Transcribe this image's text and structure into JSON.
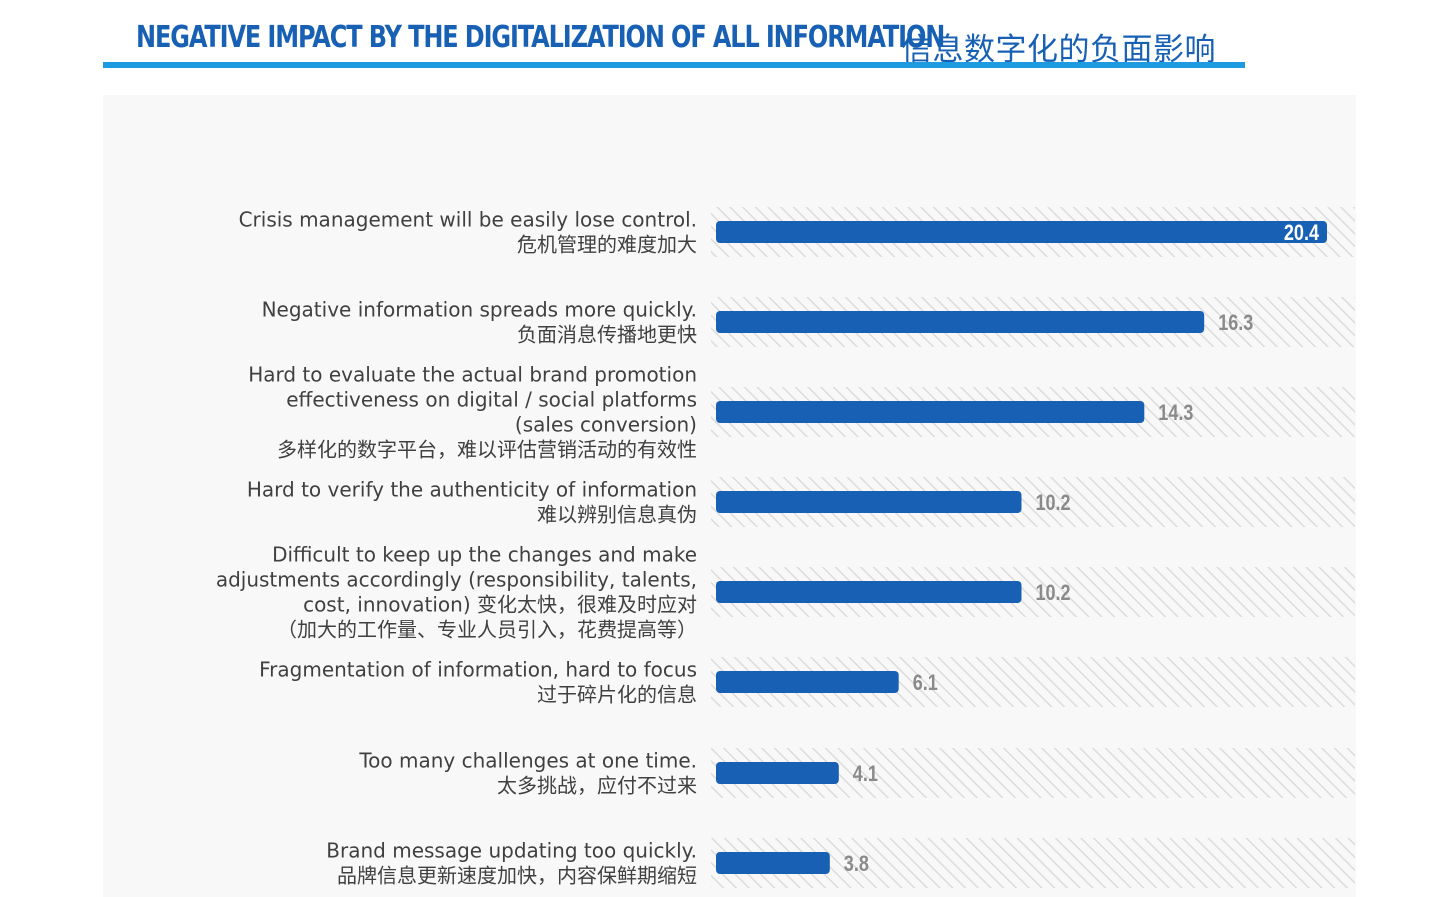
{
  "header": {
    "title_en": "NEGATIVE IMPACT BY THE DIGITALIZATION OF ALL INFORMATION",
    "title_cn": "信息数字化的负面影响"
  },
  "colors": {
    "accent": "#1760b4",
    "rule": "#1e9be0",
    "bar": "#1760b4",
    "track_hatch": "#dcdcdc",
    "label_text": "#404040",
    "value_text": "#8a8a8a"
  },
  "chart_data": {
    "type": "bar",
    "orientation": "horizontal",
    "categories": [
      {
        "lines": [
          "Crisis management will be easily lose control.",
          "危机管理的难度加大"
        ]
      },
      {
        "lines": [
          "Negative information spreads more quickly.",
          "负面消息传播地更快"
        ]
      },
      {
        "lines": [
          "Hard to evaluate the actual brand promotion",
          "effectiveness on digital / social platforms",
          "(sales conversion)",
          "多样化的数字平台，难以评估营销活动的有效性"
        ]
      },
      {
        "lines": [
          "Hard to verify the authenticity of information",
          "难以辨别信息真伪"
        ]
      },
      {
        "lines": [
          "Difficult to keep up the changes and make",
          "adjustments accordingly (responsibility, talents,",
          "cost, innovation) 变化太快，很难及时应对",
          "（加大的工作量、专业人员引入，花费提高等）"
        ]
      },
      {
        "lines": [
          "Fragmentation of information, hard to focus",
          "过于碎片化的信息"
        ]
      },
      {
        "lines": [
          "Too many challenges at one time.",
          "太多挑战，应付不过来"
        ]
      },
      {
        "lines": [
          "Brand message updating too quickly.",
          "品牌信息更新速度加快，内容保鲜期缩短"
        ]
      }
    ],
    "values": [
      20.4,
      16.3,
      14.3,
      10.2,
      10.2,
      6.1,
      4.1,
      3.8
    ],
    "value_labels": [
      "20.4",
      "16.3",
      "14.3",
      "10.2",
      "10.2",
      "6.1",
      "4.1",
      "3.8"
    ],
    "xlim": [
      0,
      21.5
    ],
    "grid": false,
    "legend": "none"
  }
}
